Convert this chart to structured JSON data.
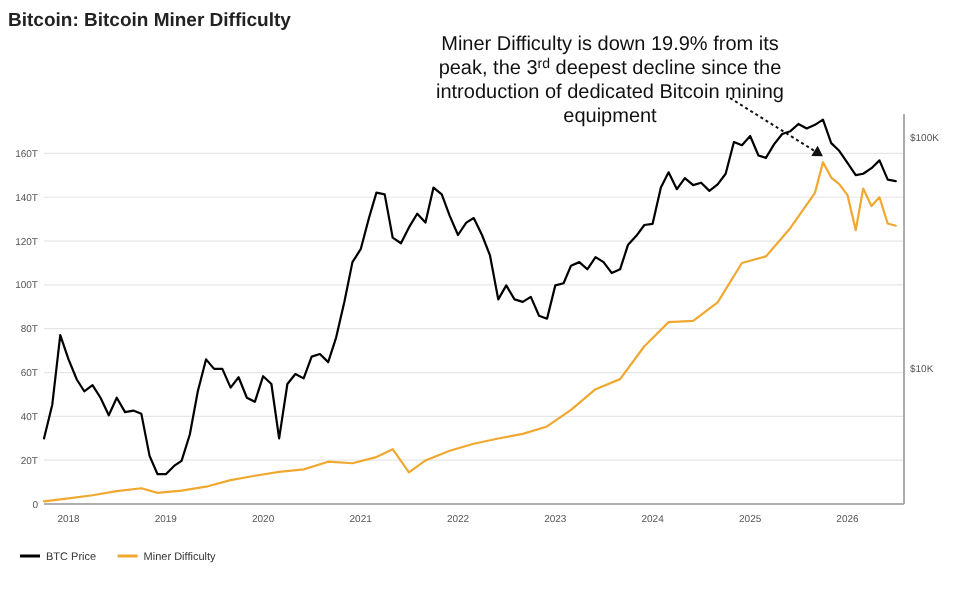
{
  "chart_data": {
    "type": "line",
    "title": "Bitcoin: Bitcoin Miner Difficulty",
    "annotations": [
      {
        "text": "Miner Difficulty is down 19.9% from its peak, the 3$^{rd}$ deepest decline since the introduction of dedicated Bitcoin mining equipment",
        "x": "2025-10",
        "y": 156
      }
    ],
    "xlim": [
      "2017-10",
      "2026-08"
    ],
    "xticks": [
      {
        "value": "2018",
        "label": "2018"
      },
      {
        "value": "2019",
        "label": "2019"
      },
      {
        "value": "2020",
        "label": "2020"
      },
      {
        "value": "2021",
        "label": "2021"
      },
      {
        "value": "2022",
        "label": "2022"
      },
      {
        "value": "2023",
        "label": "2023"
      },
      {
        "value": "2024",
        "label": "2024"
      },
      {
        "value": "2025",
        "label": "2025"
      },
      {
        "value": "2026",
        "label": "2026"
      }
    ],
    "ylim": [
      0,
      178
    ],
    "yticks": [
      0,
      {
        "value": 20,
        "label": "20T"
      },
      {
        "value": 40,
        "label": "40T"
      },
      {
        "value": 60,
        "label": "60T"
      },
      {
        "value": 80,
        "label": "80T"
      },
      {
        "value": 100,
        "label": "100T"
      },
      {
        "value": 120,
        "label": "120T"
      },
      {
        "value": 140,
        "label": "140T"
      },
      {
        "value": 160,
        "label": "160T"
      }
    ],
    "y2lim": [
      2600,
      127000
    ],
    "y2ticks": [
      {
        "value": 10000,
        "label": "$10K"
      },
      {
        "value": 100000,
        "label": "$100K"
      }
    ],
    "log": "y2",
    "grid": "y",
    "legend": "bottom left",
    "series": [
      {
        "name": "BTC Price",
        "color": "#000000",
        "axis": "y2",
        "x": [
          "2017-10",
          "2017-11",
          "2017-12",
          "2018-01",
          "2018-02",
          "2018-03",
          "2018-04",
          "2018-05",
          "2018-06",
          "2018-07",
          "2018-08",
          "2018-09",
          "2018-10",
          "2018-11",
          "2018-12",
          "2019-01",
          "2019-02",
          "2019-03",
          "2019-04",
          "2019-05",
          "2019-06",
          "2019-07",
          "2019-08",
          "2019-09",
          "2019-10",
          "2019-11",
          "2019-12",
          "2020-01",
          "2020-02",
          "2020-03",
          "2020-04",
          "2020-05",
          "2020-06",
          "2020-07",
          "2020-08",
          "2020-09",
          "2020-10",
          "2020-11",
          "2020-12",
          "2021-01",
          "2021-02",
          "2021-03",
          "2021-04",
          "2021-05",
          "2021-06",
          "2021-07",
          "2021-08",
          "2021-09",
          "2021-10",
          "2021-11",
          "2021-12",
          "2022-01",
          "2022-02",
          "2022-03",
          "2022-04",
          "2022-05",
          "2022-06",
          "2022-07",
          "2022-08",
          "2022-09",
          "2022-10",
          "2022-11",
          "2022-12",
          "2023-01",
          "2023-02",
          "2023-03",
          "2023-04",
          "2023-05",
          "2023-06",
          "2023-07",
          "2023-08",
          "2023-09",
          "2023-10",
          "2023-11",
          "2023-12",
          "2024-01",
          "2024-02",
          "2024-03",
          "2024-04",
          "2024-05",
          "2024-06",
          "2024-07",
          "2024-08",
          "2024-09",
          "2024-10",
          "2024-11",
          "2024-12",
          "2025-01",
          "2025-02",
          "2025-03",
          "2025-04",
          "2025-05",
          "2025-06",
          "2025-07",
          "2025-08",
          "2025-09",
          "2025-10",
          "2025-11",
          "2025-12",
          "2026-01",
          "2026-02",
          "2026-03",
          "2026-04",
          "2026-05",
          "2026-06",
          "2026-07"
        ],
        "values": [
          5000,
          7000,
          14000,
          11000,
          9000,
          8000,
          8500,
          7500,
          6300,
          7500,
          6500,
          6600,
          6400,
          4200,
          3500,
          3500,
          3800,
          4000,
          5200,
          8000,
          11000,
          10000,
          10000,
          8300,
          9200,
          7500,
          7200,
          9300,
          8600,
          5000,
          8600,
          9500,
          9100,
          11300,
          11600,
          10700,
          13700,
          19600,
          29000,
          33000,
          45000,
          58000,
          57000,
          37000,
          35000,
          41000,
          47000,
          43000,
          61000,
          57000,
          46000,
          38000,
          43000,
          45000,
          38000,
          31000,
          20000,
          23000,
          20000,
          19500,
          20500,
          17000,
          16500,
          23000,
          23500,
          28000,
          29000,
          27000,
          30500,
          29000,
          26000,
          27000,
          34500,
          37700,
          42000,
          42500,
          61000,
          71000,
          60000,
          67000,
          62500,
          64000,
          59000,
          63000,
          70000,
          96000,
          93000,
          102000,
          84000,
          82000,
          94000,
          104000,
          107000,
          115000,
          110000,
          114000,
          120000,
          95000,
          88000,
          78000,
          69000,
          70000,
          74000,
          80000,
          66000,
          65000
        ]
      },
      {
        "name": "Miner Difficulty",
        "color": "#f0a830",
        "x": [
          "2017-10",
          "2018-01",
          "2018-04",
          "2018-07",
          "2018-10",
          "2018-12",
          "2019-03",
          "2019-06",
          "2019-09",
          "2019-12",
          "2020-03",
          "2020-06",
          "2020-09",
          "2020-12",
          "2021-03",
          "2021-05",
          "2021-07",
          "2021-09",
          "2021-12",
          "2022-03",
          "2022-06",
          "2022-09",
          "2022-12",
          "2023-03",
          "2023-06",
          "2023-09",
          "2023-12",
          "2024-03",
          "2024-06",
          "2024-09",
          "2024-12",
          "2025-03",
          "2025-06",
          "2025-09",
          "2025-10",
          "2025-11",
          "2025-12",
          "2026-01",
          "2026-02",
          "2026-03",
          "2026-04",
          "2026-05",
          "2026-06",
          "2026-07"
        ],
        "values": [
          1.2,
          2.6,
          4,
          5.9,
          7.2,
          5.1,
          6.1,
          7.9,
          10.9,
          12.9,
          14.7,
          15.8,
          19.3,
          18.6,
          21.4,
          25,
          14.4,
          19.9,
          24.3,
          27.5,
          29.9,
          32,
          35.4,
          43,
          52.4,
          57,
          72,
          83,
          83.6,
          92,
          110,
          113,
          126,
          142,
          156,
          149,
          146,
          141,
          125,
          144,
          136,
          140,
          128,
          127
        ]
      }
    ]
  }
}
